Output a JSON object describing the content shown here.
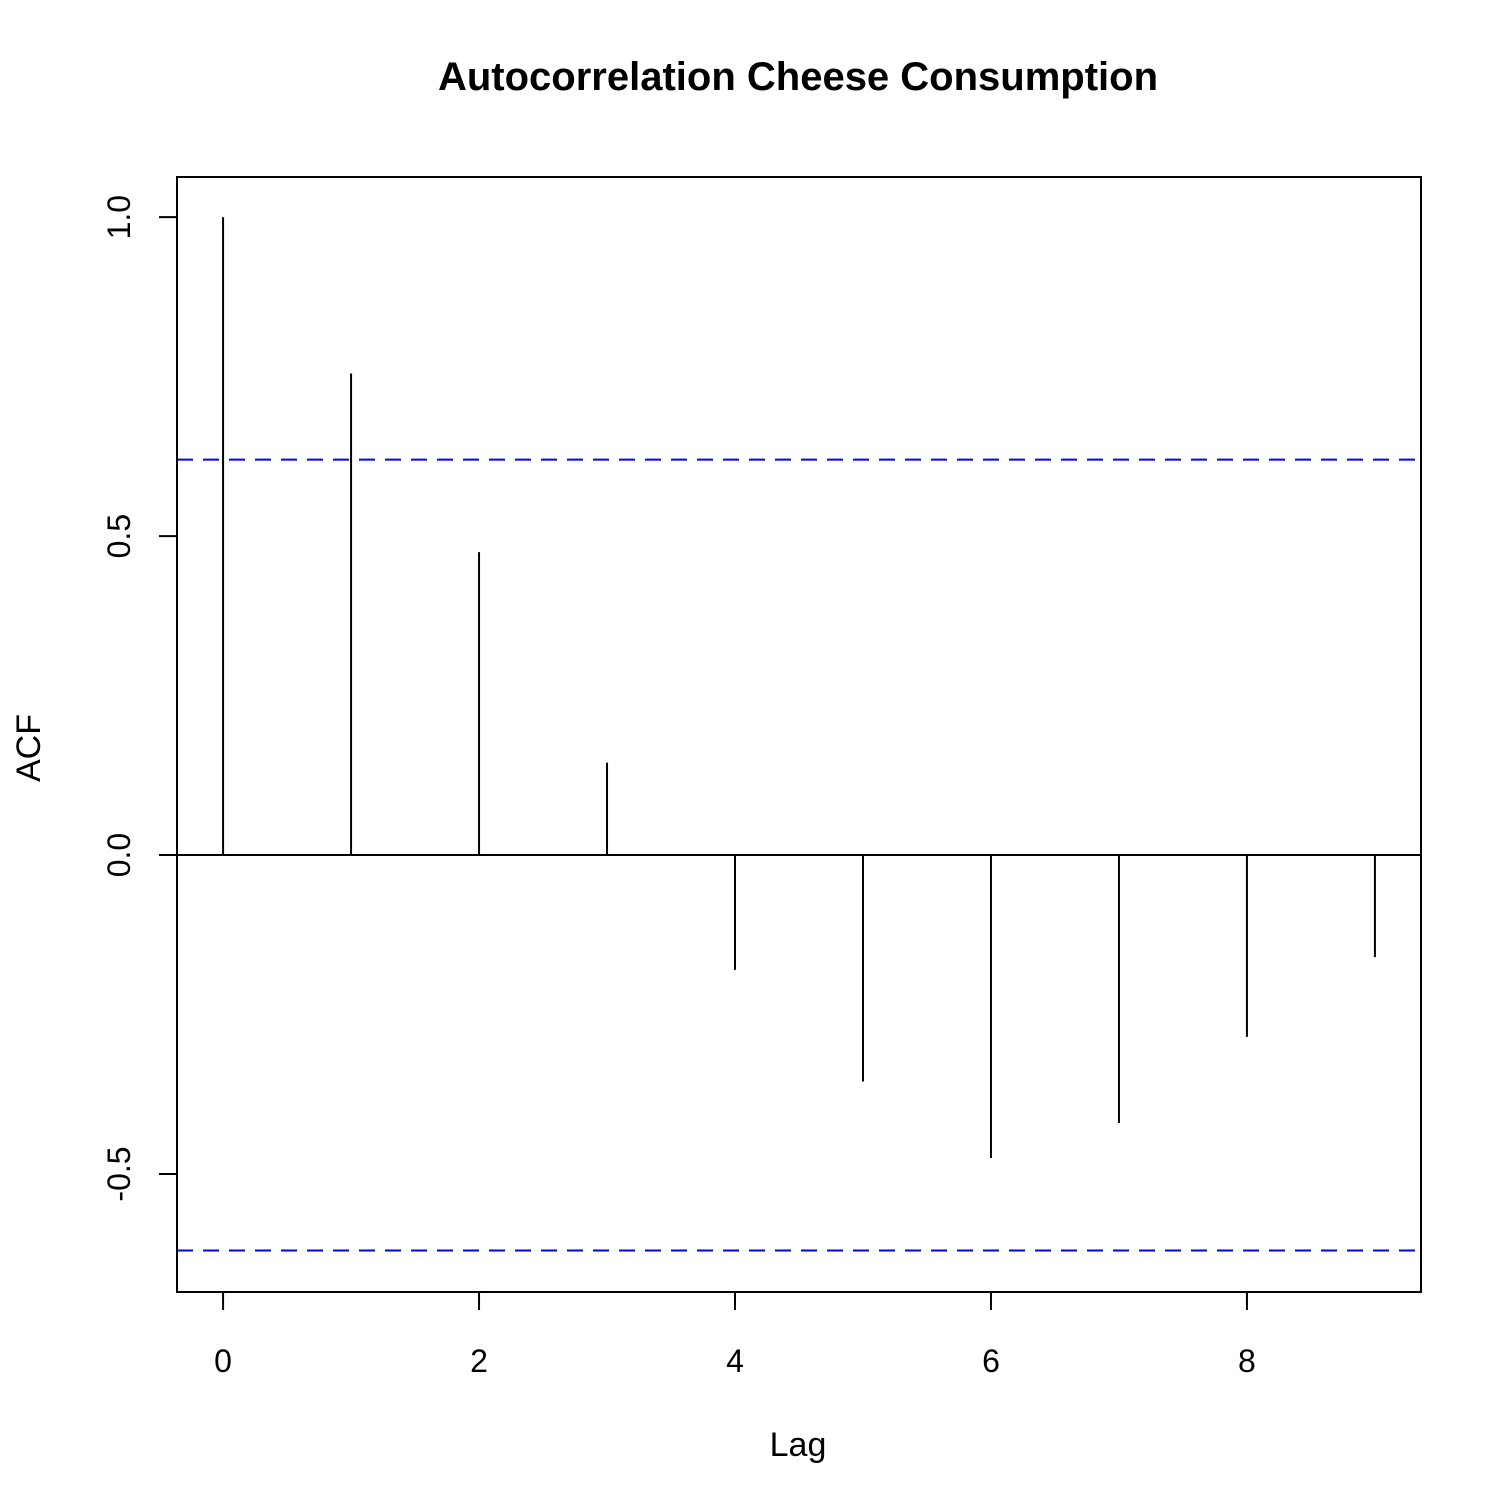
{
  "chart_data": {
    "type": "bar",
    "title": "Autocorrelation Cheese Consumption",
    "xlabel": "Lag",
    "ylabel": "ACF",
    "x": [
      0,
      1,
      2,
      3,
      4,
      5,
      6,
      7,
      8,
      9
    ],
    "values": [
      1.0,
      0.755,
      0.475,
      0.145,
      -0.18,
      -0.355,
      -0.475,
      -0.42,
      -0.285,
      -0.16
    ],
    "xlim": [
      -0.36,
      9.36
    ],
    "ylim": [
      -0.685,
      1.063
    ],
    "xticks": [
      "0",
      "2",
      "4",
      "6",
      "8"
    ],
    "yticks": [
      "-0.5",
      "0.0",
      "0.5",
      "1.0"
    ],
    "confidence_bounds": [
      0.62,
      -0.62
    ],
    "zero_line": true,
    "grid": false,
    "colors": {
      "stems": "#000000",
      "bounds": "#0000ff",
      "frame": "#000000"
    }
  }
}
